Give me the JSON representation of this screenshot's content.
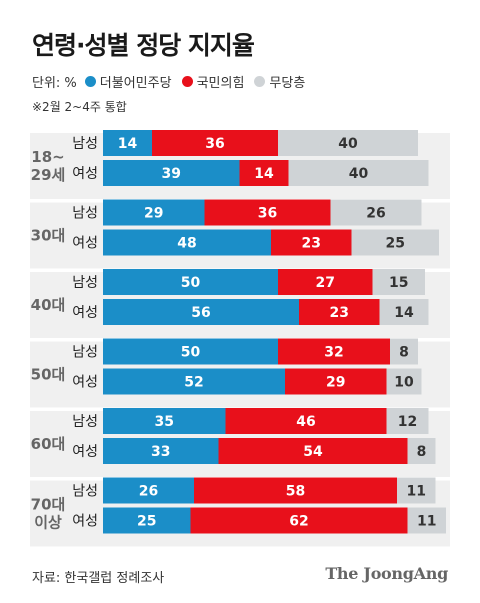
{
  "title": "연령·성별 정당 지지율",
  "legend": {
    "unit": "단위: %",
    "items": [
      {
        "label": "더불어민주당",
        "color": "#1b8ec8"
      },
      {
        "label": "국민의힘",
        "color": "#e8101b"
      },
      {
        "label": "무당층",
        "color": "#cfd3d6"
      }
    ]
  },
  "note": "※2월 2~4주 통합",
  "source": "자료: 한국갤럽 정례조사",
  "logo": "The JoongAng",
  "chart_data": {
    "type": "bar",
    "orientation": "horizontal",
    "stacked": true,
    "series_names": [
      "더불어민주당",
      "국민의힘",
      "무당층"
    ],
    "colors": [
      "#1b8ec8",
      "#e8101b",
      "#cfd3d6"
    ],
    "groups": [
      {
        "age": [
          "18~",
          "29세"
        ],
        "rows": [
          {
            "sex": "남성",
            "values": [
              14,
              36,
              40
            ]
          },
          {
            "sex": "여성",
            "values": [
              39,
              14,
              40
            ]
          }
        ]
      },
      {
        "age": [
          "30대"
        ],
        "rows": [
          {
            "sex": "남성",
            "values": [
              29,
              36,
              26
            ]
          },
          {
            "sex": "여성",
            "values": [
              48,
              23,
              25
            ]
          }
        ]
      },
      {
        "age": [
          "40대"
        ],
        "rows": [
          {
            "sex": "남성",
            "values": [
              50,
              27,
              15
            ]
          },
          {
            "sex": "여성",
            "values": [
              56,
              23,
              14
            ]
          }
        ]
      },
      {
        "age": [
          "50대"
        ],
        "rows": [
          {
            "sex": "남성",
            "values": [
              50,
              32,
              8
            ]
          },
          {
            "sex": "여성",
            "values": [
              52,
              29,
              10
            ]
          }
        ]
      },
      {
        "age": [
          "60대"
        ],
        "rows": [
          {
            "sex": "남성",
            "values": [
              35,
              46,
              12
            ]
          },
          {
            "sex": "여성",
            "values": [
              33,
              54,
              8
            ]
          }
        ]
      },
      {
        "age": [
          "70대",
          "이상"
        ],
        "rows": [
          {
            "sex": "남성",
            "values": [
              26,
              58,
              11
            ]
          },
          {
            "sex": "여성",
            "values": [
              25,
              62,
              11
            ]
          }
        ]
      }
    ]
  }
}
